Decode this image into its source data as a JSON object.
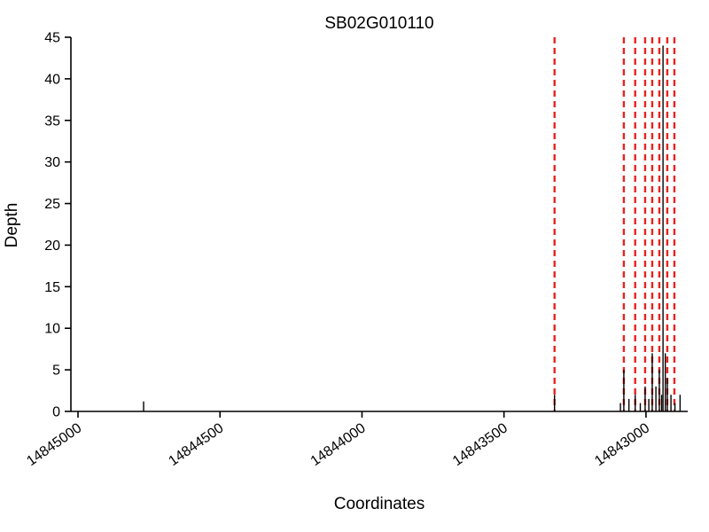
{
  "chart_data": {
    "type": "line",
    "title": "SB02G010110",
    "xlabel": "Coordinates",
    "ylabel": "Depth",
    "x_axis": {
      "left_value": 14845025,
      "right_value": 14842853,
      "reversed": true,
      "ticks": [
        14845000,
        14844500,
        14844000,
        14843500,
        14843000
      ]
    },
    "y_axis": {
      "min": 0,
      "max": 45,
      "ticks": [
        0,
        5,
        10,
        15,
        20,
        25,
        30,
        35,
        40,
        45
      ]
    },
    "vlines": {
      "color": "#e8231f",
      "style": "dashed",
      "positions": [
        14843322,
        14843078,
        14843038,
        14843003,
        14842978,
        14842953,
        14842925,
        14842900
      ]
    },
    "spikes": [
      [
        14844769,
        1.2
      ],
      [
        14843322,
        2
      ],
      [
        14843090,
        1
      ],
      [
        14843078,
        5
      ],
      [
        14843060,
        1.5
      ],
      [
        14843038,
        2
      ],
      [
        14843020,
        1
      ],
      [
        14843003,
        3
      ],
      [
        14842990,
        1.5
      ],
      [
        14842978,
        7
      ],
      [
        14842965,
        3
      ],
      [
        14842953,
        5
      ],
      [
        14842945,
        2
      ],
      [
        14842940,
        44
      ],
      [
        14842932,
        7
      ],
      [
        14842925,
        4
      ],
      [
        14842912,
        2
      ],
      [
        14842898,
        1
      ],
      [
        14842880,
        2
      ]
    ],
    "spike_color": "#000000"
  }
}
